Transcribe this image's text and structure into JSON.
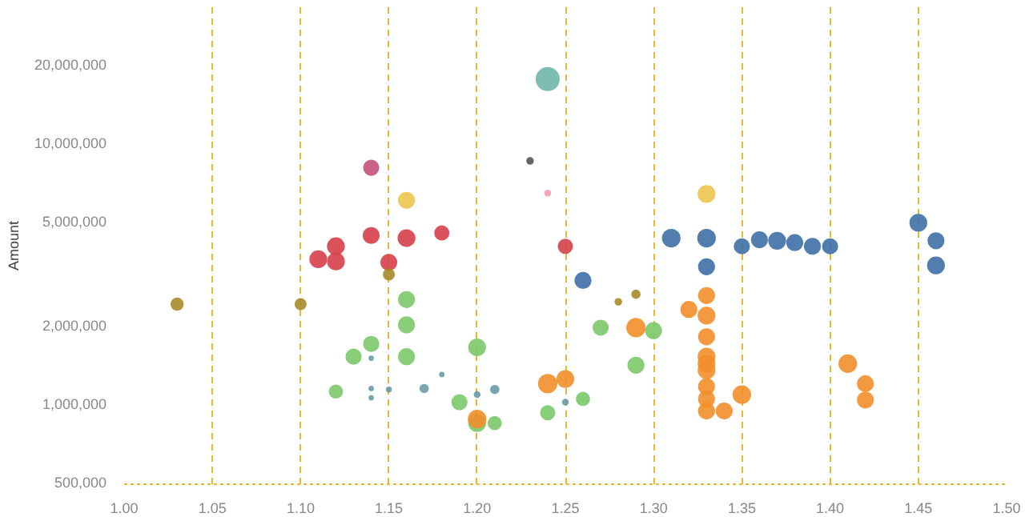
{
  "chart_data": {
    "type": "bubble",
    "ylabel": "Amount",
    "log": "y",
    "grid": "x",
    "xlim": [
      1.0,
      1.5
    ],
    "xticks": [
      {
        "value": 1.0,
        "label": "1.00"
      },
      {
        "value": 1.05,
        "label": "1.05"
      },
      {
        "value": 1.1,
        "label": "1.10"
      },
      {
        "value": 1.15,
        "label": "1.15"
      },
      {
        "value": 1.2,
        "label": "1.20"
      },
      {
        "value": 1.25,
        "label": "1.25"
      },
      {
        "value": 1.3,
        "label": "1.30"
      },
      {
        "value": 1.35,
        "label": "1.35"
      },
      {
        "value": 1.4,
        "label": "1.40"
      },
      {
        "value": 1.45,
        "label": "1.45"
      },
      {
        "value": 1.5,
        "label": "1.50"
      }
    ],
    "ylim": [
      490000,
      33000000
    ],
    "yticks": [
      {
        "value": 500000,
        "label": "500,000"
      },
      {
        "value": 1000000,
        "label": "1,000,000"
      },
      {
        "value": 2000000,
        "label": "2,000,000"
      },
      {
        "value": 5000000,
        "label": "5,000,000"
      },
      {
        "value": 10000000,
        "label": "10,000,000"
      },
      {
        "value": 20000000,
        "label": "20,000,000"
      }
    ],
    "series": [
      {
        "color": "#d6404a",
        "x": [
          1.11,
          1.12,
          1.12,
          1.14,
          1.15,
          1.16,
          1.18,
          1.25
        ],
        "values": [
          3570000,
          4000000,
          3500000,
          4400000,
          3470000,
          4300000,
          4500000,
          4000000
        ],
        "sizes": [
          0.55,
          0.55,
          0.55,
          0.5,
          0.5,
          0.55,
          0.4,
          0.4
        ]
      },
      {
        "color": "#7bc96a",
        "x": [
          1.16,
          1.16,
          1.14,
          1.13,
          1.16,
          1.12,
          1.2,
          1.19,
          1.2,
          1.21,
          1.24,
          1.26,
          1.27,
          1.29,
          1.3
        ],
        "values": [
          2500000,
          2000000,
          1690000,
          1510000,
          1510000,
          1110000,
          1640000,
          1010000,
          840000,
          840000,
          920000,
          1040000,
          1950000,
          1400000,
          1900000
        ],
        "sizes": [
          0.5,
          0.5,
          0.45,
          0.45,
          0.5,
          0.35,
          0.55,
          0.45,
          0.55,
          0.35,
          0.4,
          0.35,
          0.45,
          0.5,
          0.5
        ]
      },
      {
        "color": "#f28e2b",
        "x": [
          1.2,
          1.24,
          1.25,
          1.29,
          1.32,
          1.33,
          1.33,
          1.33,
          1.33,
          1.33,
          1.33,
          1.33,
          1.33,
          1.33,
          1.34,
          1.35,
          1.41,
          1.42,
          1.42
        ],
        "values": [
          870000,
          1190000,
          1240000,
          1950000,
          2290000,
          2590000,
          2170000,
          1800000,
          1510000,
          1420000,
          1340000,
          1160000,
          1040000,
          935000,
          935000,
          1080000,
          1420000,
          1190000,
          1030000
        ],
        "sizes": [
          0.6,
          0.65,
          0.55,
          0.65,
          0.5,
          0.5,
          0.55,
          0.5,
          0.55,
          0.55,
          0.55,
          0.5,
          0.5,
          0.5,
          0.5,
          0.6,
          0.6,
          0.5,
          0.5
        ]
      },
      {
        "color": "#3e6fa6",
        "x": [
          1.26,
          1.31,
          1.33,
          1.33,
          1.35,
          1.36,
          1.37,
          1.38,
          1.39,
          1.4,
          1.45,
          1.46,
          1.46
        ],
        "values": [
          2960000,
          4300000,
          4300000,
          3340000,
          4000000,
          4240000,
          4200000,
          4130000,
          4000000,
          4000000,
          4920000,
          4200000,
          3380000
        ],
        "sizes": [
          0.5,
          0.6,
          0.6,
          0.5,
          0.45,
          0.5,
          0.55,
          0.5,
          0.5,
          0.45,
          0.55,
          0.5,
          0.55
        ]
      },
      {
        "color": "#a88a2a",
        "x": [
          1.03,
          1.1,
          1.15,
          1.28,
          1.29
        ],
        "values": [
          2400000,
          2400000,
          3120000,
          2450000,
          2620000
        ],
        "sizes": [
          0.3,
          0.25,
          0.25,
          0.1,
          0.15
        ]
      },
      {
        "color": "#6fb7a8",
        "x": [
          1.24
        ],
        "values": [
          17500000
        ],
        "sizes": [
          1
        ]
      },
      {
        "color": "#edc44e",
        "x": [
          1.16,
          1.33
        ],
        "values": [
          6000000,
          6350000
        ],
        "sizes": [
          0.5,
          0.55
        ]
      },
      {
        "color": "#c4507a",
        "x": [
          1.14
        ],
        "values": [
          8000000
        ],
        "sizes": [
          0.45
        ]
      },
      {
        "color": "#555555",
        "x": [
          1.23
        ],
        "values": [
          8500000
        ],
        "sizes": [
          0.1
        ]
      },
      {
        "color": "#f0a0b0",
        "x": [
          1.24
        ],
        "values": [
          6400000
        ],
        "sizes": [
          0.08
        ]
      },
      {
        "color": "#6a9aa8",
        "x": [
          1.14,
          1.14,
          1.14,
          1.15,
          1.17,
          1.18,
          1.2,
          1.21,
          1.25
        ],
        "values": [
          1490000,
          1140000,
          1050000,
          1130000,
          1140000,
          1290000,
          1080000,
          1130000,
          1010000
        ],
        "sizes": [
          0.05,
          0.05,
          0.05,
          0.06,
          0.15,
          0.05,
          0.08,
          0.15,
          0.08
        ]
      }
    ]
  }
}
